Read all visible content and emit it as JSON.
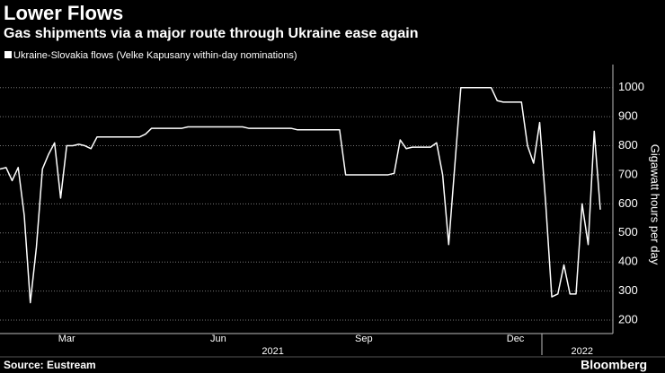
{
  "chart_data": {
    "type": "line",
    "title": "Lower Flows",
    "subtitle": "Gas shipments via a major route through Ukraine ease again",
    "y_axis_label": "Gigawatt hours per day",
    "source": "Source: Eustream",
    "brand": "Bloomberg",
    "categories": [
      null,
      null,
      null,
      null,
      null,
      null,
      null,
      null,
      null,
      null,
      null,
      "Mar",
      null,
      null,
      null,
      null,
      null,
      null,
      null,
      null,
      null,
      null,
      null,
      null,
      null,
      null,
      null,
      null,
      null,
      null,
      null,
      null,
      null,
      null,
      null,
      null,
      "Jun",
      null,
      null,
      null,
      null,
      null,
      null,
      null,
      null,
      null,
      null,
      null,
      null,
      null,
      null,
      null,
      null,
      null,
      null,
      null,
      null,
      null,
      null,
      null,
      "Sep",
      null,
      null,
      null,
      null,
      null,
      null,
      null,
      null,
      null,
      null,
      null,
      null,
      null,
      null,
      null,
      null,
      null,
      null,
      null,
      null,
      null,
      null,
      null,
      null,
      "Dec",
      null,
      null,
      null,
      null,
      null,
      null,
      null,
      null,
      null,
      null,
      null,
      null,
      null,
      null
    ],
    "year_categories": [
      null,
      null,
      null,
      null,
      null,
      null,
      null,
      null,
      null,
      null,
      null,
      null,
      null,
      null,
      null,
      null,
      null,
      null,
      null,
      null,
      null,
      null,
      null,
      null,
      null,
      null,
      null,
      null,
      null,
      null,
      null,
      null,
      null,
      null,
      null,
      null,
      null,
      null,
      null,
      null,
      null,
      null,
      null,
      null,
      null,
      "2021",
      null,
      null,
      null,
      null,
      null,
      null,
      null,
      null,
      null,
      null,
      null,
      null,
      null,
      null,
      null,
      null,
      null,
      null,
      null,
      null,
      null,
      null,
      null,
      null,
      null,
      null,
      null,
      null,
      null,
      null,
      null,
      null,
      null,
      null,
      null,
      null,
      null,
      null,
      null,
      null,
      null,
      null,
      null,
      null,
      null,
      null,
      null,
      null,
      null,
      null,
      "2022",
      null,
      null,
      null
    ],
    "series": [
      {
        "name": "Ukraine-Slovakia flows (Velke Kapusany within-day nominations)",
        "color": "#ffffff",
        "values": [
          720,
          725,
          680,
          725,
          560,
          260,
          450,
          720,
          770,
          810,
          620,
          800,
          800,
          805,
          800,
          790,
          830,
          830,
          830,
          830,
          830,
          830,
          830,
          830,
          840,
          860,
          860,
          860,
          860,
          860,
          860,
          865,
          865,
          865,
          865,
          865,
          865,
          865,
          865,
          865,
          865,
          860,
          860,
          860,
          860,
          860,
          860,
          860,
          860,
          855,
          855,
          855,
          855,
          855,
          855,
          855,
          855,
          700,
          700,
          700,
          700,
          700,
          700,
          700,
          700,
          705,
          820,
          790,
          795,
          795,
          795,
          795,
          810,
          700,
          460,
          730,
          1000,
          1000,
          1000,
          1000,
          1000,
          1000,
          955,
          950,
          950,
          950,
          950,
          800,
          740,
          880,
          600,
          280,
          290,
          390,
          290,
          290,
          600,
          460,
          850,
          580
        ]
      }
    ],
    "ylim": [
      160,
      1070
    ],
    "yticks": [
      200,
      300,
      400,
      500,
      600,
      700,
      800,
      900,
      1000
    ],
    "grid": true
  }
}
